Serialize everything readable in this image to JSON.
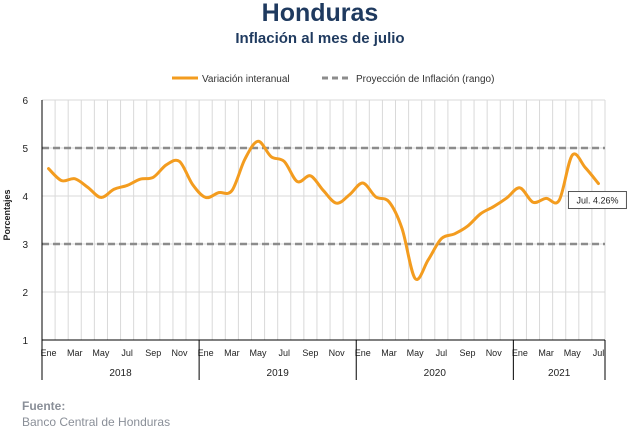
{
  "title": "Honduras",
  "subtitle": "Inflación al mes de julio",
  "source": {
    "label": "Fuente:",
    "value": "Banco Central de Honduras"
  },
  "colors": {
    "series": "#f39c1f",
    "target": "#8c8c8c",
    "grid": "#d9d9d9",
    "text": "#1f3a5f"
  },
  "chart_data": {
    "type": "line",
    "ylabel": "Porcentajes",
    "ylim": [
      1,
      6
    ],
    "yticks": [
      1,
      2,
      3,
      4,
      5,
      6
    ],
    "grid": true,
    "legend_position": "top",
    "x_tick_labels": [
      "Ene",
      "Mar",
      "May",
      "Jul",
      "Sep",
      "Nov",
      "Ene",
      "Mar",
      "May",
      "Jul",
      "Sep",
      "Nov",
      "Ene",
      "Mar",
      "May",
      "Jul",
      "Sep",
      "Nov",
      "Ene",
      "Mar",
      "May",
      "Jul"
    ],
    "year_groups": [
      {
        "label": "2018",
        "months": 12
      },
      {
        "label": "2019",
        "months": 12
      },
      {
        "label": "2020",
        "months": 12
      },
      {
        "label": "2021",
        "months": 7
      }
    ],
    "series": [
      {
        "name": "Variación interanual",
        "style": "solid",
        "values": [
          4.57,
          4.32,
          4.36,
          4.18,
          3.97,
          4.14,
          4.22,
          4.35,
          4.39,
          4.65,
          4.72,
          4.24,
          3.97,
          4.07,
          4.11,
          4.77,
          5.14,
          4.82,
          4.72,
          4.3,
          4.42,
          4.11,
          3.85,
          4.03,
          4.27,
          3.98,
          3.88,
          3.32,
          2.28,
          2.67,
          3.11,
          3.21,
          3.37,
          3.63,
          3.78,
          3.96,
          4.17,
          3.87,
          3.95,
          3.91,
          4.85,
          4.59,
          4.26
        ]
      },
      {
        "name": "Proyección de Inflación (rango)",
        "style": "dashed",
        "bounds": [
          3,
          5
        ]
      }
    ],
    "annotation": {
      "text": "Jul. 4.26%",
      "value": 4.26
    }
  }
}
